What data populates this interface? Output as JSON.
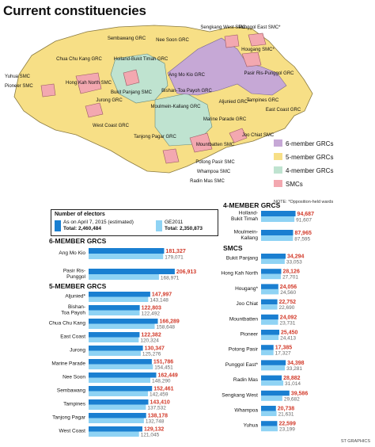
{
  "title": "Current constituencies",
  "legend": {
    "items": [
      {
        "label": "6-member GRCs",
        "color": "#c6a8d6"
      },
      {
        "label": "5-member GRCs",
        "color": "#f7df86"
      },
      {
        "label": "4-member GRCs",
        "color": "#bfe3d0"
      },
      {
        "label": "SMCs",
        "color": "#f3a8b0"
      }
    ],
    "note": "NOTE: *Opposition-held wards"
  },
  "map_labels": {
    "sembawang": "Sembawang GRC",
    "nee_soon": "Nee Soon GRC",
    "sengkang": "Sengkang West SMC",
    "punggol": "Punggol East SMC*",
    "hougang": "Hougang SMC*",
    "chua_chu_kang": "Chua Chu Kang GRC",
    "holland": "Holland-Bukit Timah GRC",
    "ang_mo_kio": "Ang Mo Kio GRC",
    "pasir_ris": "Pasir Ris-Punggol GRC",
    "yuhua": "Yuhua SMC",
    "pioneer": "Pioneer SMC",
    "hong_kah": "Hong Kah North SMC",
    "bukit_panjang": "Bukit Panjang SMC",
    "bishan": "Bishan-Toa Payoh GRC",
    "jurong": "Jurong GRC",
    "moulmein": "Moulmein-Kallang GRC",
    "aljunied": "Aljunied GRC*",
    "tampines": "Tampines GRC",
    "east_coast": "East Coast GRC",
    "west_coast": "West Coast GRC",
    "marine_parade": "Marine Parade GRC",
    "joo_chiat": "Joo Chiat SMC",
    "tanjong_pagar": "Tanjong Pagar GRC",
    "mountbatten": "Mountbatten SMC",
    "potong_pasir": "Potong Pasir SMC",
    "whampoa": "Whampoa SMC",
    "radin_mas": "Radin Mas SMC"
  },
  "electors_box": {
    "heading": "Number of electors",
    "series1_label": "As on April 7, 2015 (estimated)",
    "series1_total": "Total: 2,460,484",
    "series2_label": "GE2011",
    "series2_total": "Total: 2,350,873"
  },
  "credit": "ST GRAPHICS",
  "chart_data": {
    "type": "bar",
    "orientation": "horizontal",
    "series": [
      {
        "name": "As on April 7, 2015 (estimated)",
        "color": "#1a7fd1"
      },
      {
        "name": "GE2011",
        "color": "#8fd3f4"
      }
    ],
    "groups": [
      {
        "title": "6-MEMBER GRCS",
        "items": [
          {
            "label": "Ang Mo Kio",
            "values": [
              181327,
              179071
            ],
            "labels": [
              "181,327",
              "179,071"
            ]
          },
          {
            "label": "Pasir Ris-Punggol",
            "values": [
              206913,
              168971
            ],
            "labels": [
              "206,913",
              "168,971"
            ]
          }
        ]
      },
      {
        "title": "5-MEMBER GRCS",
        "items": [
          {
            "label": "Aljunied*",
            "values": [
              147997,
              143148
            ],
            "labels": [
              "147,997",
              "143,148"
            ]
          },
          {
            "label": "Bishan-Toa Payoh",
            "values": [
              122803,
              122492
            ],
            "labels": [
              "122,803",
              "122,492"
            ]
          },
          {
            "label": "Chua Chu Kang",
            "values": [
              166289,
              158648
            ],
            "labels": [
              "166,289",
              "158,648"
            ]
          },
          {
            "label": "East Coast",
            "values": [
              122382,
              120324
            ],
            "labels": [
              "122,382",
              "120,324"
            ]
          },
          {
            "label": "Jurong",
            "values": [
              130347,
              125276
            ],
            "labels": [
              "130,347",
              "125,276"
            ]
          },
          {
            "label": "Marine Parade",
            "values": [
              151786,
              154451
            ],
            "labels": [
              "151,786",
              "154,451"
            ]
          },
          {
            "label": "Nee Soon",
            "values": [
              162449,
              148290
            ],
            "labels": [
              "162,449",
              "148,290"
            ]
          },
          {
            "label": "Sembawang",
            "values": [
              152461,
              142459
            ],
            "labels": [
              "152,461",
              "142,459"
            ]
          },
          {
            "label": "Tampines",
            "values": [
              143410,
              137532
            ],
            "labels": [
              "143,410",
              "137,532"
            ]
          },
          {
            "label": "Tanjong Pagar",
            "values": [
              138178,
              132748
            ],
            "labels": [
              "138,178",
              "132,748"
            ]
          },
          {
            "label": "West Coast",
            "values": [
              129132,
              121045
            ],
            "labels": [
              "129,132",
              "121,045"
            ]
          }
        ]
      },
      {
        "title": "4-MEMBER GRCS",
        "items": [
          {
            "label": "Holland-Bukit Timah",
            "values": [
              94687,
              91607
            ],
            "labels": [
              "94,687",
              "91,607"
            ]
          },
          {
            "label": "Moulmein-Kallang",
            "values": [
              87965,
              87595
            ],
            "labels": [
              "87,965",
              "87,595"
            ]
          }
        ]
      },
      {
        "title": "SMCS",
        "items": [
          {
            "label": "Bukit Panjang",
            "values": [
              34294,
              33053
            ],
            "labels": [
              "34,294",
              "33,053"
            ]
          },
          {
            "label": "Hong Kah North",
            "values": [
              28126,
              27701
            ],
            "labels": [
              "28,126",
              "27,701"
            ]
          },
          {
            "label": "Hougang*",
            "values": [
              24056,
              24560
            ],
            "labels": [
              "24,056",
              "24,560"
            ]
          },
          {
            "label": "Joo Chiat",
            "values": [
              22752,
              22690
            ],
            "labels": [
              "22,752",
              "22,690"
            ]
          },
          {
            "label": "Mountbatten",
            "values": [
              24092,
              23731
            ],
            "labels": [
              "24,092",
              "23,731"
            ]
          },
          {
            "label": "Pioneer",
            "values": [
              25450,
              24413
            ],
            "labels": [
              "25,450",
              "24,413"
            ]
          },
          {
            "label": "Potong Pasir",
            "values": [
              17385,
              17327
            ],
            "labels": [
              "17,385",
              "17,327"
            ]
          },
          {
            "label": "Punggol East*",
            "values": [
              34398,
              33281
            ],
            "labels": [
              "34,398",
              "33,281"
            ]
          },
          {
            "label": "Radin Mas",
            "values": [
              28882,
              31014
            ],
            "labels": [
              "28,882",
              "31,014"
            ]
          },
          {
            "label": "Sengkang West",
            "values": [
              39586,
              29682
            ],
            "labels": [
              "39,586",
              "29,682"
            ]
          },
          {
            "label": "Whampoa",
            "values": [
              20738,
              21631
            ],
            "labels": [
              "20,738",
              "21,631"
            ]
          },
          {
            "label": "Yuhua",
            "values": [
              22599,
              23199
            ],
            "labels": [
              "22,599",
              "23,199"
            ]
          }
        ]
      }
    ]
  }
}
